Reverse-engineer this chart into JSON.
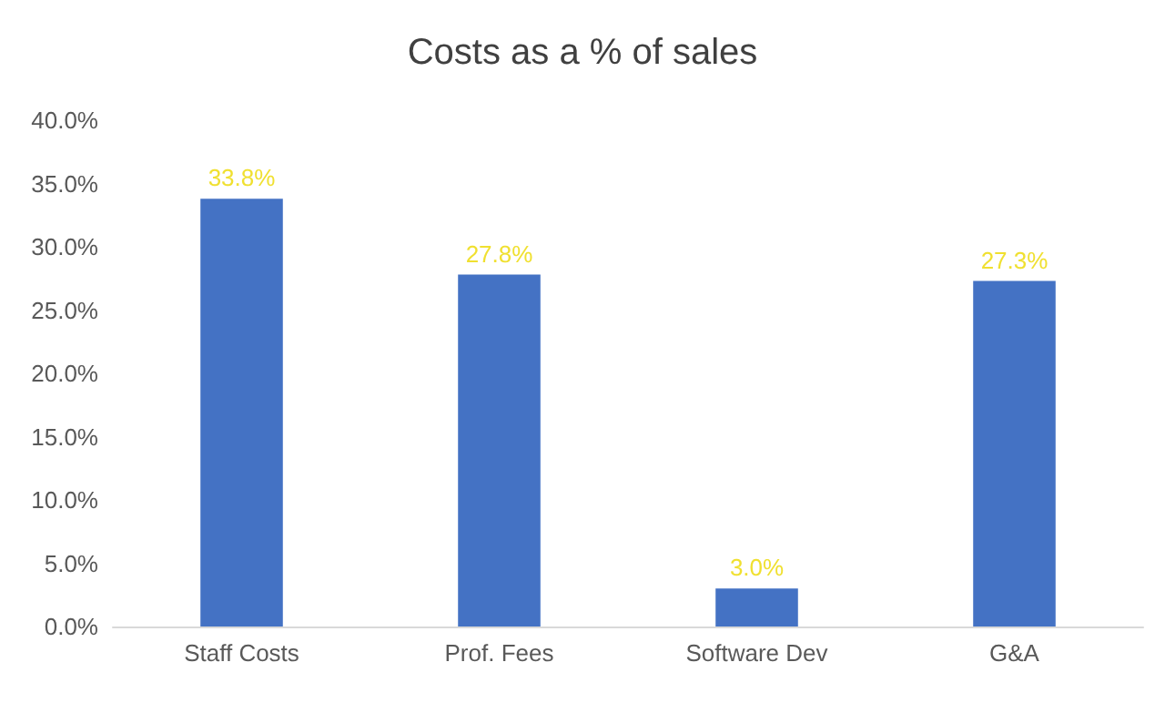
{
  "chart_data": {
    "type": "bar",
    "title": "Costs as a % of sales",
    "categories": [
      "Staff Costs",
      "Prof. Fees",
      "Software Dev",
      "G&A"
    ],
    "values": [
      33.8,
      27.8,
      3.0,
      27.3
    ],
    "value_labels": [
      "33.8%",
      "27.8%",
      "3.0%",
      "27.3%"
    ],
    "color": "#4472c4",
    "ylim": [
      0,
      40
    ],
    "yticks": [
      {
        "value": 0,
        "label": "0.0%"
      },
      {
        "value": 5,
        "label": "5.0%"
      },
      {
        "value": 10,
        "label": "10.0%"
      },
      {
        "value": 15,
        "label": "15.0%"
      },
      {
        "value": 20,
        "label": "20.0%"
      },
      {
        "value": 25,
        "label": "25.0%"
      },
      {
        "value": 30,
        "label": "30.0%"
      },
      {
        "value": 35,
        "label": "35.0%"
      },
      {
        "value": 40,
        "label": "40.0%"
      }
    ],
    "grid": false
  }
}
